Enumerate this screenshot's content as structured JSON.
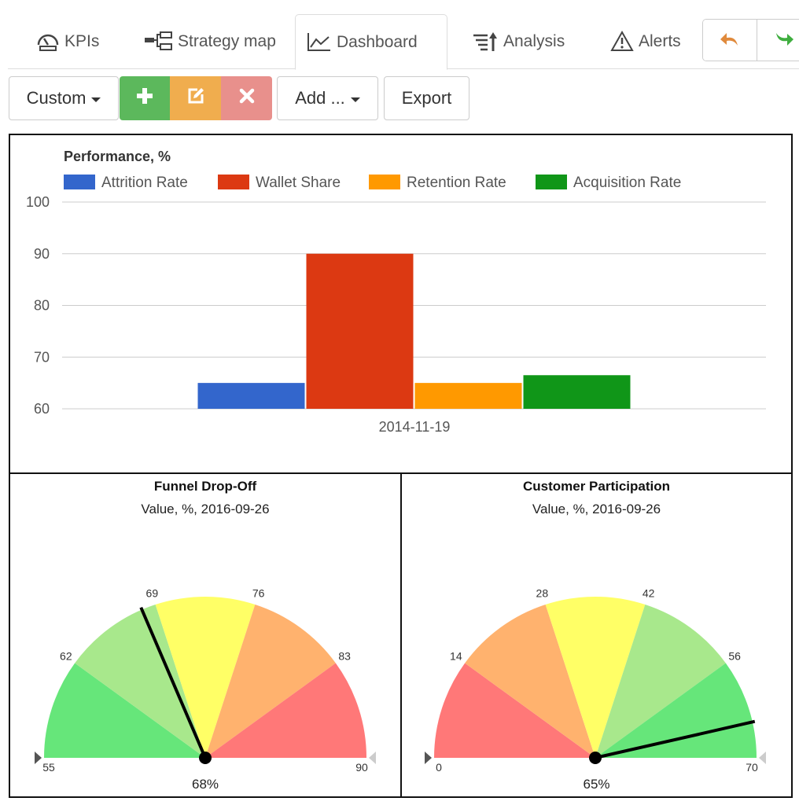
{
  "tabs": [
    {
      "label": "KPIs",
      "icon": "speedometer-icon"
    },
    {
      "label": "Strategy map",
      "icon": "strategy-map-icon"
    },
    {
      "label": "Dashboard",
      "icon": "line-chart-icon",
      "active": true
    },
    {
      "label": "Analysis",
      "icon": "sort-analysis-icon"
    },
    {
      "label": "Alerts",
      "icon": "warning-icon"
    }
  ],
  "toolbar": {
    "custom_label": "Custom",
    "add_label": "Add ...",
    "export_label": "Export",
    "colors": {
      "add": "#5cb85c",
      "edit": "#f0ad4e",
      "delete": "#e8908c"
    }
  },
  "chart_data": [
    {
      "type": "bar",
      "title": "Performance, %",
      "categories": [
        "2014-11-19"
      ],
      "series": [
        {
          "name": "Attrition Rate",
          "values": [
            65
          ],
          "color": "#3366cc"
        },
        {
          "name": "Wallet Share",
          "values": [
            90
          ],
          "color": "#dc3912"
        },
        {
          "name": "Retention Rate",
          "values": [
            65
          ],
          "color": "#ff9900"
        },
        {
          "name": "Acquisition Rate",
          "values": [
            66.5
          ],
          "color": "#109618"
        }
      ],
      "yticks": [
        100,
        90,
        80,
        70,
        60
      ],
      "ylim": [
        60,
        100
      ],
      "grid": true,
      "legend": "top"
    }
  ],
  "gauges": [
    {
      "title": "Funnel Drop-Off",
      "subtitle": "Value, %, 2016-09-26",
      "min": 55,
      "max": 90,
      "value": 68,
      "value_label": "68%",
      "ticks": [
        "55",
        "62",
        "69",
        "76",
        "83",
        "90"
      ],
      "band_colors": [
        "#66e67a",
        "#a8e88c",
        "#ffff66",
        "#ffb26e",
        "#ff7878"
      ]
    },
    {
      "title": "Customer Participation",
      "subtitle": "Value, %, 2016-09-26",
      "min": 0,
      "max": 70,
      "value": 65,
      "value_label": "65%",
      "ticks": [
        "0",
        "14",
        "28",
        "42",
        "56",
        "70"
      ],
      "band_colors": [
        "#ff7878",
        "#ffb26e",
        "#ffff66",
        "#a8e88c",
        "#66e67a"
      ]
    }
  ]
}
